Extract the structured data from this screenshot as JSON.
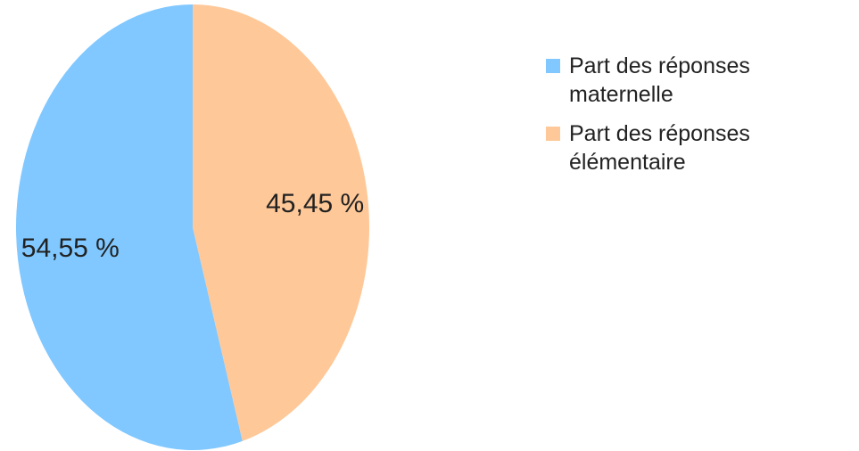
{
  "chart_data": {
    "type": "pie",
    "series": [
      {
        "name": "Part des réponses maternelle",
        "color": "#80c8ff",
        "values": [
          54.55
        ],
        "value_labels": [
          "54,55 %"
        ]
      },
      {
        "name": "Part des réponses élémentaire",
        "color": "#ffc898",
        "values": [
          45.45
        ],
        "value_labels": [
          "45,45 %"
        ]
      }
    ]
  }
}
